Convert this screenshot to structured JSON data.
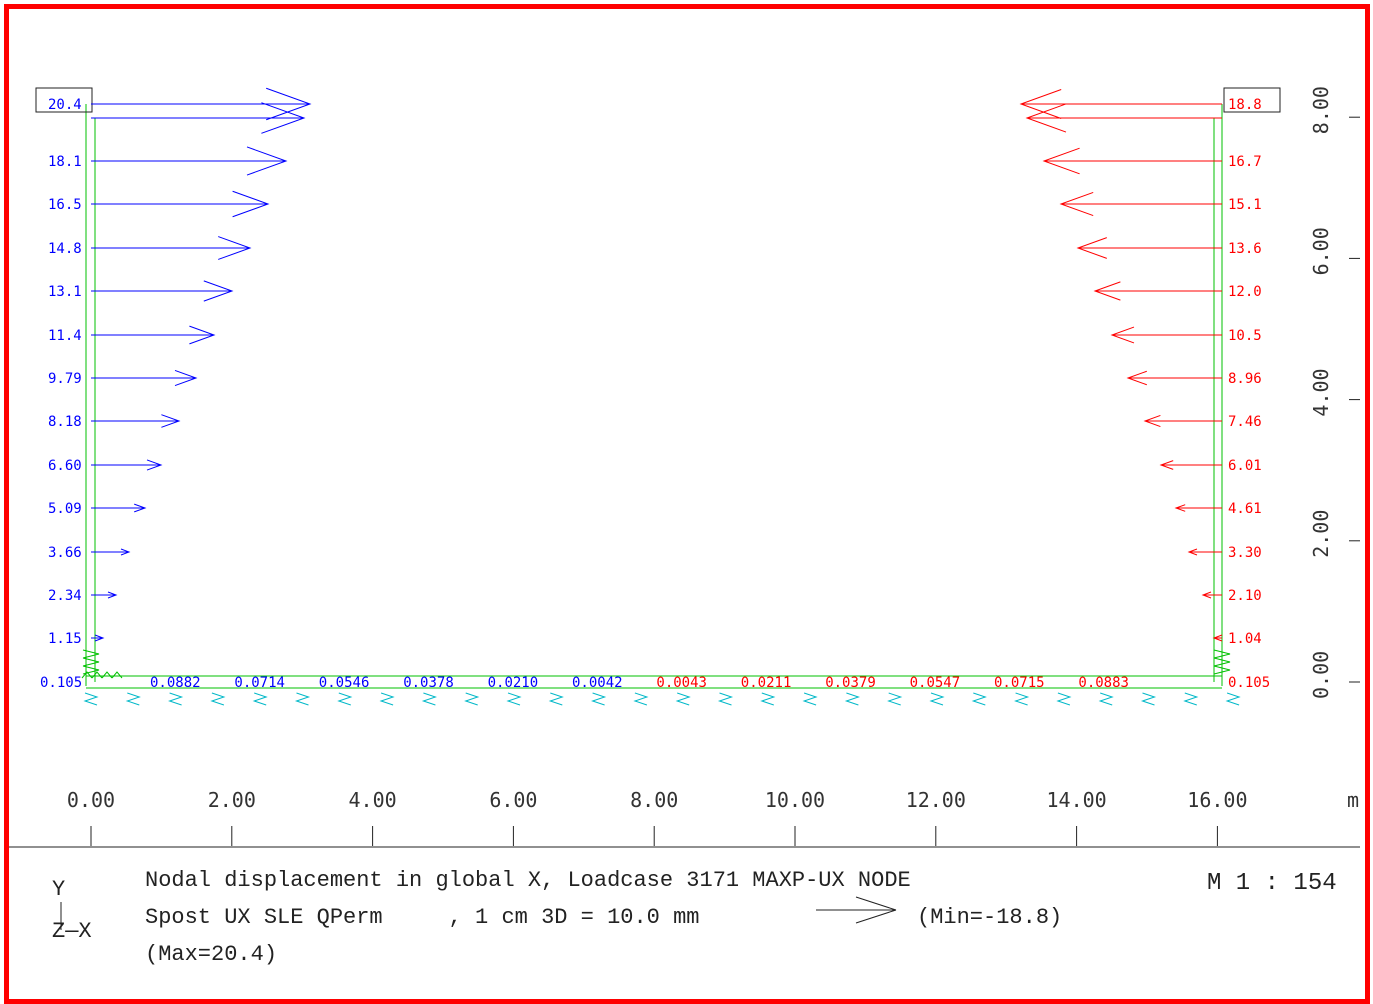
{
  "left_loads": [
    "20.4",
    "18.1",
    "16.5",
    "14.8",
    "13.1",
    "11.4",
    "9.79",
    "8.18",
    "6.60",
    "5.09",
    "3.66",
    "2.34",
    "1.15",
    "0.105"
  ],
  "right_loads": [
    "18.8",
    "16.7",
    "15.1",
    "13.6",
    "12.0",
    "10.5",
    "8.96",
    "7.46",
    "6.01",
    "4.61",
    "3.30",
    "2.10",
    "1.04",
    "0.105"
  ],
  "base_loads": [
    "0.0882",
    "0.0714",
    "0.0546",
    "0.0378",
    "0.0210",
    "0.0042",
    "0.0043",
    "0.0211",
    "0.0379",
    "0.0547",
    "0.0715",
    "0.0883"
  ],
  "axes": {
    "x_ticks": [
      "0.00",
      "2.00",
      "4.00",
      "6.00",
      "8.00",
      "10.00",
      "12.00",
      "14.00",
      "16.00"
    ],
    "x_unit": "m",
    "y_ticks": [
      "0.00",
      "2.00",
      "4.00",
      "6.00",
      "8.00"
    ]
  },
  "footer": {
    "line1": "Nodal displacement in global X, Loadcase 3171 MAXP-UX NODE",
    "line2": "Spost UX SLE QPerm     , 1 cm 3D = 10.0 mm",
    "min": "(Min=-18.8)",
    "max": "(Max=20.4)",
    "scale": "M 1 : 154",
    "axis_y": "Y",
    "axis_zx": "Z—X"
  },
  "colors": {
    "left": "#0000ff",
    "right": "#ff0000",
    "structure": "#00c000",
    "springs": "#00b8c8",
    "frame": "#ff0000"
  }
}
